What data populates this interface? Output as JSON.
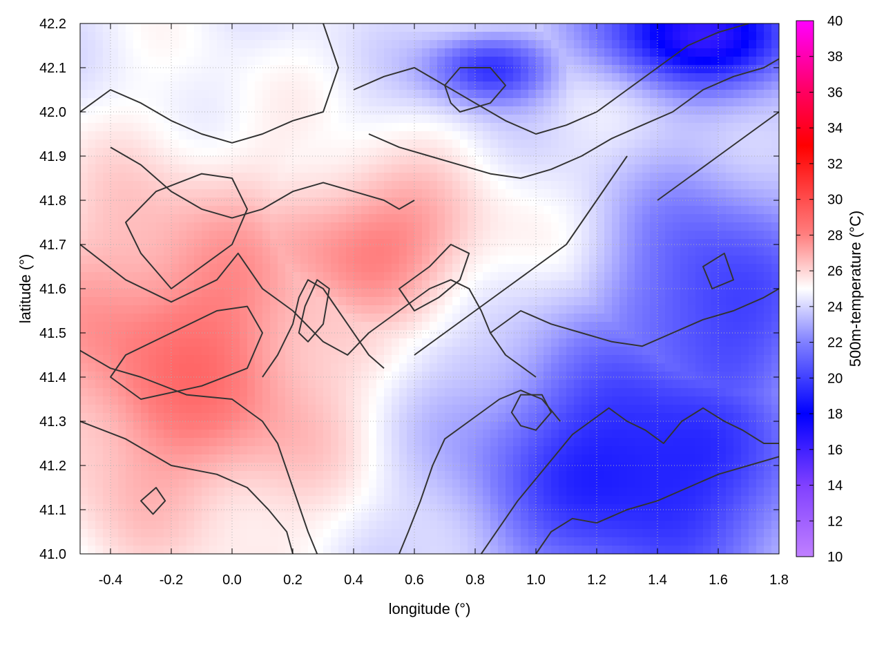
{
  "chart_data": {
    "type": "heatmap",
    "xlabel": "longitude (°)",
    "ylabel": "latitude (°)",
    "colorbar_label": "500m-temperature (°C)",
    "xlim": [
      -0.5,
      1.8
    ],
    "ylim": [
      41.0,
      42.2
    ],
    "xticks": [
      "-0.4",
      "-0.2",
      "0.0",
      "0.2",
      "0.4",
      "0.6",
      "0.8",
      "1.0",
      "1.2",
      "1.4",
      "1.6",
      "1.8"
    ],
    "yticks": [
      "41.0",
      "41.1",
      "41.2",
      "41.3",
      "41.4",
      "41.5",
      "41.6",
      "41.7",
      "41.8",
      "41.9",
      "42.0",
      "42.1",
      "42.2"
    ],
    "colorbar_range": [
      10,
      40
    ],
    "colorbar_ticks": [
      "10",
      "12",
      "14",
      "16",
      "18",
      "20",
      "22",
      "24",
      "26",
      "28",
      "30",
      "32",
      "34",
      "36",
      "38",
      "40"
    ],
    "colormap": [
      {
        "value": 10,
        "color": "#c080ff"
      },
      {
        "value": 14,
        "color": "#8040ff"
      },
      {
        "value": 18,
        "color": "#0000ff"
      },
      {
        "value": 22,
        "color": "#8080ff"
      },
      {
        "value": 25,
        "color": "#ffffff"
      },
      {
        "value": 28,
        "color": "#ff8080"
      },
      {
        "value": 33,
        "color": "#ff0000"
      },
      {
        "value": 36,
        "color": "#ff0060"
      },
      {
        "value": 40,
        "color": "#ff00ff"
      }
    ],
    "contour_color": "#333333",
    "grid": true,
    "field_summary": {
      "warm_west_region_celsius": 28.5,
      "cool_southeast_region_celsius": 18.5,
      "cold_north_region_celsius": 16
    },
    "contour_lines": [
      [
        [
          -0.5,
          41.7
        ],
        [
          -0.35,
          41.62
        ],
        [
          -0.2,
          41.57
        ],
        [
          -0.05,
          41.62
        ],
        [
          0.02,
          41.68
        ],
        [
          0.1,
          41.6
        ],
        [
          0.2,
          41.55
        ],
        [
          0.3,
          41.48
        ],
        [
          0.38,
          41.45
        ],
        [
          0.45,
          41.5
        ],
        [
          0.55,
          41.55
        ],
        [
          0.65,
          41.6
        ],
        [
          0.72,
          41.62
        ],
        [
          0.78,
          41.6
        ],
        [
          0.82,
          41.55
        ],
        [
          0.85,
          41.5
        ],
        [
          0.9,
          41.45
        ],
        [
          1.0,
          41.4
        ]
      ],
      [
        [
          -0.5,
          41.46
        ],
        [
          -0.4,
          41.42
        ],
        [
          -0.3,
          41.4
        ],
        [
          -0.15,
          41.36
        ],
        [
          0.0,
          41.35
        ],
        [
          0.1,
          41.3
        ],
        [
          0.15,
          41.25
        ],
        [
          0.2,
          41.15
        ],
        [
          0.25,
          41.05
        ],
        [
          0.28,
          41.0
        ]
      ],
      [
        [
          -0.5,
          41.3
        ],
        [
          -0.35,
          41.26
        ],
        [
          -0.2,
          41.2
        ],
        [
          -0.05,
          41.18
        ],
        [
          0.05,
          41.15
        ],
        [
          0.12,
          41.1
        ],
        [
          0.18,
          41.05
        ],
        [
          0.2,
          41.0
        ]
      ],
      [
        [
          0.55,
          41.0
        ],
        [
          0.58,
          41.05
        ],
        [
          0.62,
          41.12
        ],
        [
          0.66,
          41.2
        ],
        [
          0.7,
          41.26
        ],
        [
          0.78,
          41.3
        ],
        [
          0.88,
          41.35
        ],
        [
          0.95,
          41.37
        ],
        [
          1.02,
          41.35
        ],
        [
          1.08,
          41.3
        ]
      ],
      [
        [
          0.82,
          41.0
        ],
        [
          0.88,
          41.06
        ],
        [
          0.94,
          41.12
        ],
        [
          1.0,
          41.17
        ],
        [
          1.06,
          41.22
        ],
        [
          1.12,
          41.27
        ],
        [
          1.18,
          41.3
        ],
        [
          1.24,
          41.33
        ],
        [
          1.3,
          41.3
        ],
        [
          1.36,
          41.28
        ],
        [
          1.42,
          41.25
        ],
        [
          1.48,
          41.3
        ],
        [
          1.55,
          41.33
        ],
        [
          1.62,
          41.3
        ],
        [
          1.68,
          41.28
        ],
        [
          1.75,
          41.25
        ],
        [
          1.8,
          41.25
        ]
      ],
      [
        [
          1.0,
          41.0
        ],
        [
          1.05,
          41.05
        ],
        [
          1.12,
          41.08
        ],
        [
          1.2,
          41.07
        ],
        [
          1.3,
          41.1
        ],
        [
          1.4,
          41.12
        ],
        [
          1.5,
          41.15
        ],
        [
          1.6,
          41.18
        ],
        [
          1.7,
          41.2
        ],
        [
          1.8,
          41.22
        ]
      ],
      [
        [
          0.6,
          41.45
        ],
        [
          0.7,
          41.5
        ],
        [
          0.8,
          41.55
        ],
        [
          0.9,
          41.6
        ],
        [
          1.0,
          41.65
        ],
        [
          1.1,
          41.7
        ],
        [
          1.15,
          41.75
        ],
        [
          1.2,
          41.8
        ],
        [
          1.25,
          41.85
        ],
        [
          1.3,
          41.9
        ]
      ],
      [
        [
          0.85,
          41.5
        ],
        [
          0.95,
          41.55
        ],
        [
          1.05,
          41.52
        ],
        [
          1.15,
          41.5
        ],
        [
          1.25,
          41.48
        ],
        [
          1.35,
          41.47
        ],
        [
          1.45,
          41.5
        ],
        [
          1.55,
          41.53
        ],
        [
          1.65,
          41.55
        ],
        [
          1.75,
          41.58
        ],
        [
          1.8,
          41.6
        ]
      ],
      [
        [
          0.4,
          42.05
        ],
        [
          0.5,
          42.08
        ],
        [
          0.6,
          42.1
        ],
        [
          0.7,
          42.06
        ],
        [
          0.8,
          42.02
        ],
        [
          0.9,
          41.98
        ],
        [
          1.0,
          41.95
        ],
        [
          1.1,
          41.97
        ],
        [
          1.2,
          42.0
        ],
        [
          1.3,
          42.05
        ],
        [
          1.4,
          42.1
        ],
        [
          1.5,
          42.15
        ],
        [
          1.6,
          42.18
        ],
        [
          1.7,
          42.2
        ]
      ],
      [
        [
          0.45,
          41.95
        ],
        [
          0.55,
          41.92
        ],
        [
          0.65,
          41.9
        ],
        [
          0.75,
          41.88
        ],
        [
          0.85,
          41.86
        ],
        [
          0.95,
          41.85
        ],
        [
          1.05,
          41.87
        ],
        [
          1.15,
          41.9
        ],
        [
          1.25,
          41.94
        ],
        [
          1.35,
          41.97
        ],
        [
          1.45,
          42.0
        ],
        [
          1.55,
          42.05
        ],
        [
          1.65,
          42.08
        ],
        [
          1.75,
          42.1
        ],
        [
          1.8,
          42.12
        ]
      ],
      [
        [
          1.4,
          41.8
        ],
        [
          1.5,
          41.85
        ],
        [
          1.6,
          41.9
        ],
        [
          1.7,
          41.95
        ],
        [
          1.8,
          42.0
        ]
      ],
      [
        [
          -0.5,
          42.0
        ],
        [
          -0.4,
          42.05
        ],
        [
          -0.3,
          42.02
        ],
        [
          -0.2,
          41.98
        ],
        [
          -0.1,
          41.95
        ],
        [
          0.0,
          41.93
        ],
        [
          0.1,
          41.95
        ],
        [
          0.2,
          41.98
        ],
        [
          0.3,
          42.0
        ],
        [
          0.35,
          42.1
        ],
        [
          0.3,
          42.2
        ]
      ],
      [
        [
          -0.4,
          41.92
        ],
        [
          -0.3,
          41.88
        ],
        [
          -0.2,
          41.82
        ],
        [
          -0.1,
          41.78
        ],
        [
          0.0,
          41.76
        ],
        [
          0.1,
          41.78
        ],
        [
          0.2,
          41.82
        ],
        [
          0.3,
          41.84
        ],
        [
          0.4,
          41.82
        ],
        [
          0.5,
          41.8
        ],
        [
          0.55,
          41.78
        ],
        [
          0.6,
          41.8
        ]
      ],
      [
        [
          0.1,
          41.4
        ],
        [
          0.15,
          41.45
        ],
        [
          0.2,
          41.52
        ],
        [
          0.22,
          41.58
        ],
        [
          0.25,
          41.62
        ],
        [
          0.3,
          41.6
        ],
        [
          0.35,
          41.55
        ],
        [
          0.4,
          41.5
        ],
        [
          0.45,
          41.45
        ],
        [
          0.5,
          41.42
        ]
      ]
    ],
    "closed_contours": [
      [
        [
          0.75,
          42.0
        ],
        [
          0.85,
          42.02
        ],
        [
          0.9,
          42.06
        ],
        [
          0.85,
          42.1
        ],
        [
          0.75,
          42.1
        ],
        [
          0.7,
          42.06
        ],
        [
          0.72,
          42.02
        ],
        [
          0.75,
          42.0
        ]
      ],
      [
        [
          1.0,
          41.28
        ],
        [
          1.05,
          41.32
        ],
        [
          1.02,
          41.36
        ],
        [
          0.95,
          41.36
        ],
        [
          0.92,
          41.32
        ],
        [
          0.95,
          41.29
        ],
        [
          1.0,
          41.28
        ]
      ],
      [
        [
          -0.3,
          41.35
        ],
        [
          -0.1,
          41.38
        ],
        [
          0.05,
          41.42
        ],
        [
          0.1,
          41.5
        ],
        [
          0.05,
          41.56
        ],
        [
          -0.05,
          41.55
        ],
        [
          -0.2,
          41.5
        ],
        [
          -0.35,
          41.45
        ],
        [
          -0.4,
          41.4
        ],
        [
          -0.3,
          41.35
        ]
      ],
      [
        [
          0.55,
          41.6
        ],
        [
          0.65,
          41.65
        ],
        [
          0.72,
          41.7
        ],
        [
          0.78,
          41.68
        ],
        [
          0.75,
          41.62
        ],
        [
          0.68,
          41.58
        ],
        [
          0.6,
          41.55
        ],
        [
          0.55,
          41.6
        ]
      ],
      [
        [
          0.25,
          41.48
        ],
        [
          0.3,
          41.52
        ],
        [
          0.32,
          41.6
        ],
        [
          0.28,
          41.62
        ],
        [
          0.24,
          41.56
        ],
        [
          0.22,
          41.5
        ],
        [
          0.25,
          41.48
        ]
      ],
      [
        [
          -0.2,
          41.6
        ],
        [
          -0.1,
          41.65
        ],
        [
          0.0,
          41.7
        ],
        [
          0.05,
          41.78
        ],
        [
          0.0,
          41.85
        ],
        [
          -0.1,
          41.86
        ],
        [
          -0.25,
          41.82
        ],
        [
          -0.35,
          41.75
        ],
        [
          -0.3,
          41.68
        ],
        [
          -0.2,
          41.6
        ]
      ],
      [
        [
          -0.3,
          41.12
        ],
        [
          -0.25,
          41.15
        ],
        [
          -0.22,
          41.12
        ],
        [
          -0.26,
          41.09
        ],
        [
          -0.3,
          41.12
        ]
      ],
      [
        [
          1.55,
          41.65
        ],
        [
          1.62,
          41.68
        ],
        [
          1.65,
          41.62
        ],
        [
          1.58,
          41.6
        ],
        [
          1.55,
          41.65
        ]
      ]
    ]
  }
}
